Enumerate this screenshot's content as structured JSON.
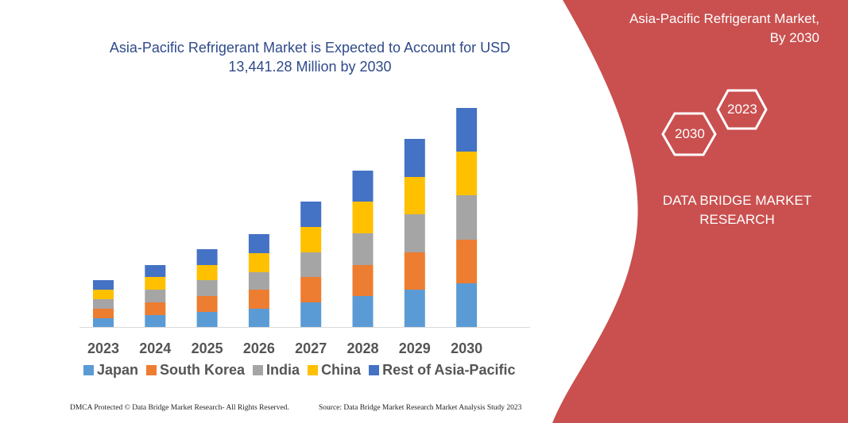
{
  "header": {
    "title_line1": "Asia-Pacific Refrigerant Market is Expected to Account for USD",
    "title_line2": "13,441.28 Million by 2030"
  },
  "side_panel": {
    "title_line1": "Asia-Pacific Refrigerant Market,",
    "title_line2": "By 2030",
    "hex_left": "2030",
    "hex_right": "2023",
    "brand_line1": "DATA BRIDGE MARKET",
    "brand_line2": "RESEARCH",
    "color": "#c9504f"
  },
  "footer": {
    "left": "DMCA Protected © Data Bridge Market Research- All Rights Reserved.",
    "right": "Source: Data Bridge Market Research Market Analysis Study 2023"
  },
  "chart_data": {
    "type": "bar",
    "stacked": true,
    "title": "Asia-Pacific Refrigerant Market is Expected to Account for USD 13,441.28 Million by 2030",
    "xlabel": "",
    "ylabel": "",
    "y_axis_shown": false,
    "grid": false,
    "legend_placement": "bottom",
    "categories": [
      "2023",
      "2024",
      "2025",
      "2026",
      "2027",
      "2028",
      "2029",
      "2030"
    ],
    "series": [
      {
        "name": "Japan",
        "color": "#5b9bd5",
        "values": [
          11,
          15,
          19,
          23,
          31,
          39,
          47,
          55
        ]
      },
      {
        "name": "South Korea",
        "color": "#ed7d31",
        "values": [
          12,
          16,
          20,
          24,
          32,
          39,
          47,
          55
        ]
      },
      {
        "name": "India",
        "color": "#a5a5a5",
        "values": [
          12,
          16,
          20,
          22,
          31,
          40,
          48,
          56
        ]
      },
      {
        "name": "China",
        "color": "#ffc000",
        "values": [
          12,
          16,
          19,
          24,
          32,
          40,
          47,
          55
        ]
      },
      {
        "name": "Rest of Asia-Pacific",
        "color": "#4472c4",
        "values": [
          12,
          15,
          20,
          24,
          32,
          39,
          48,
          55
        ]
      }
    ]
  }
}
